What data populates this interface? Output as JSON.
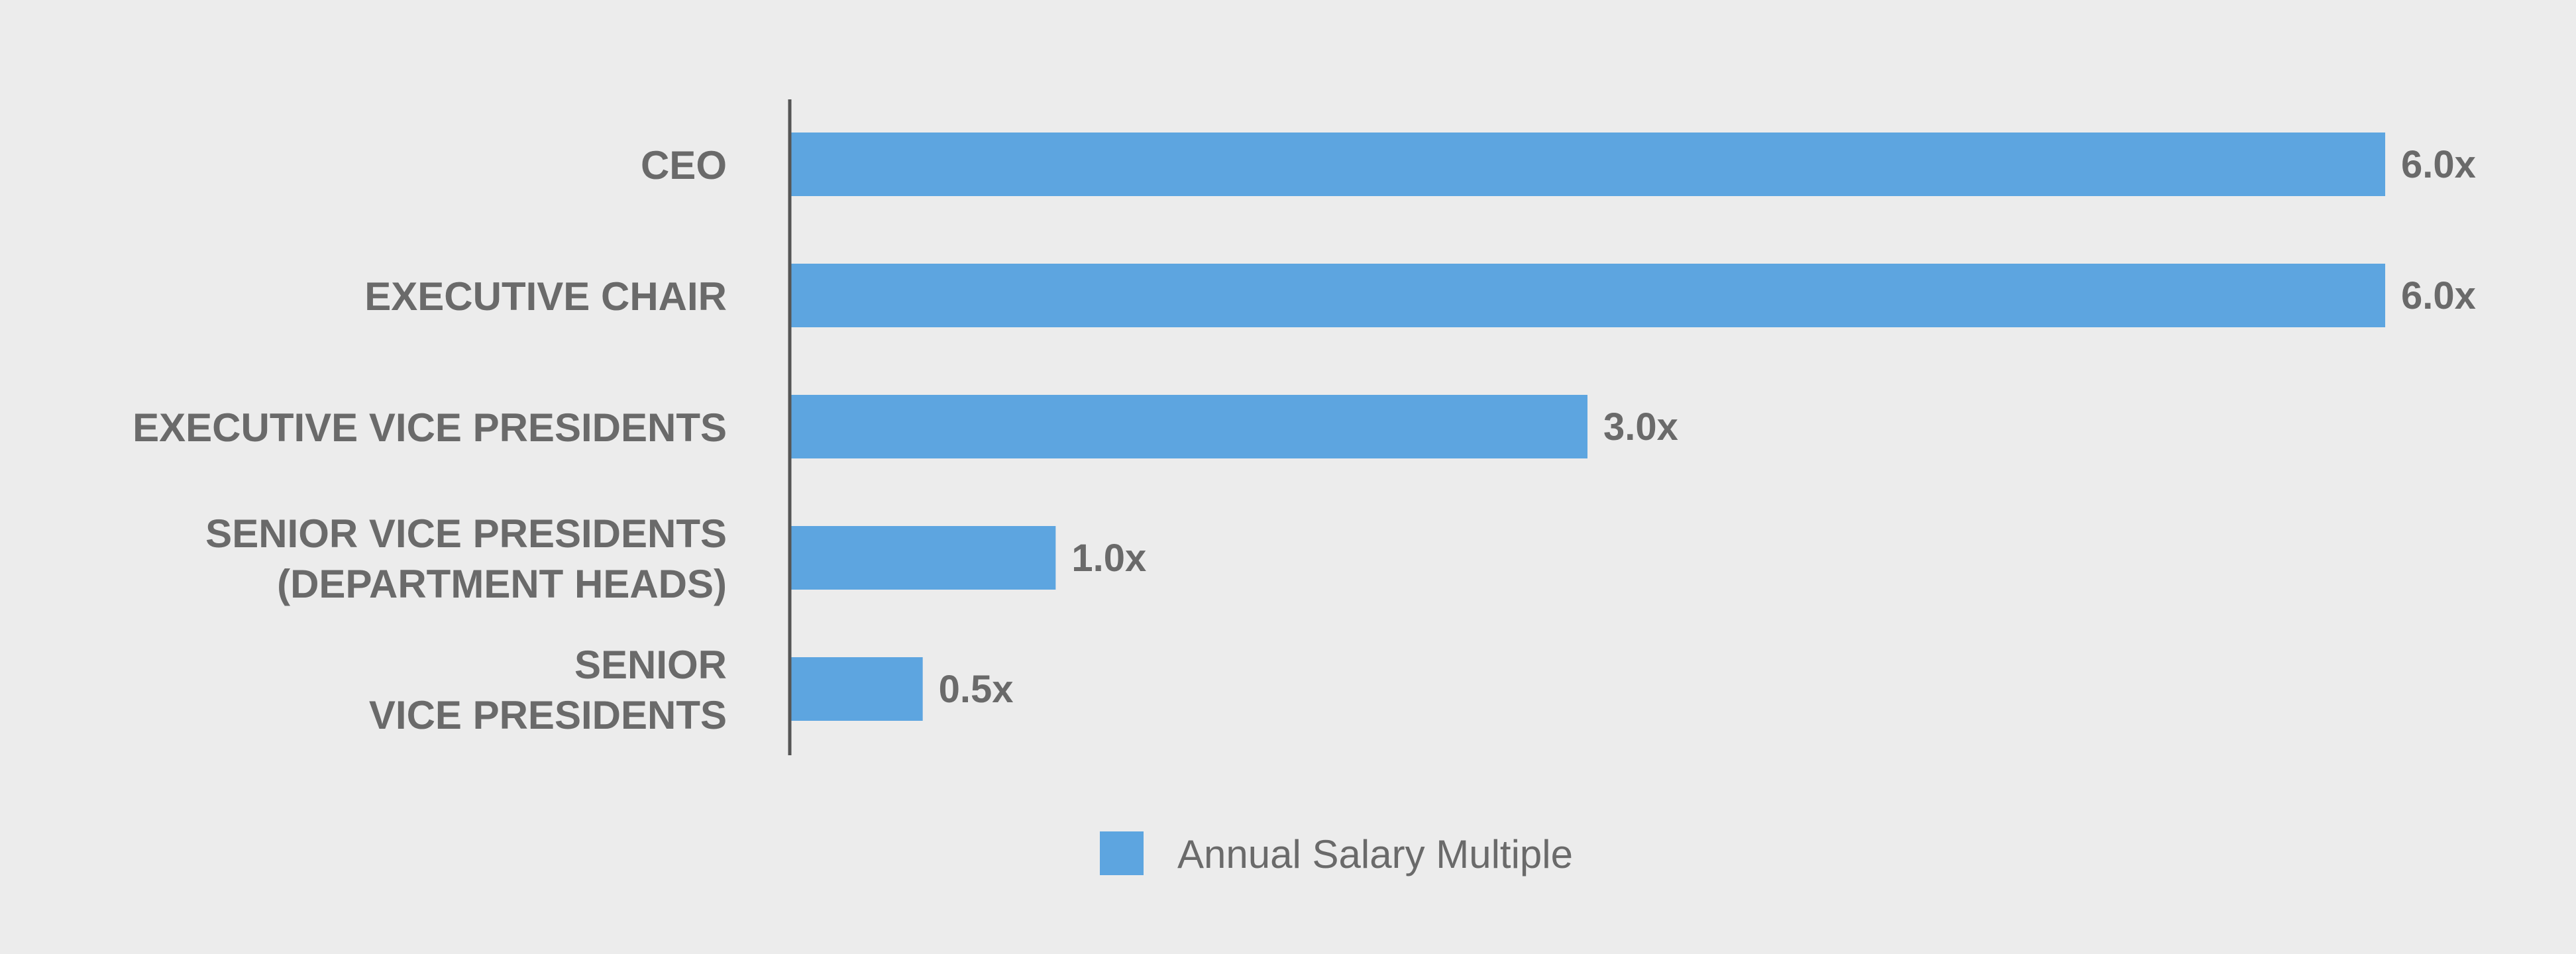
{
  "colors": {
    "bar": "#5da5e0",
    "text": "#6a6a6a",
    "axis": "#555555",
    "background": "#ececec"
  },
  "chart_data": {
    "type": "bar",
    "orientation": "horizontal",
    "categories": [
      [
        "CEO"
      ],
      [
        "EXECUTIVE CHAIR"
      ],
      [
        "EXECUTIVE VICE PRESIDENTS"
      ],
      [
        "SENIOR VICE PRESIDENTS",
        "(DEPARTMENT HEADS)"
      ],
      [
        "SENIOR",
        "VICE PRESIDENTS"
      ]
    ],
    "series": [
      {
        "name": "Annual Salary Multiple",
        "values": [
          6.0,
          6.0,
          3.0,
          1.0,
          0.5
        ],
        "labels": [
          "6.0x",
          "6.0x",
          "3.0x",
          "1.0x",
          "0.5x"
        ]
      }
    ],
    "xlim": [
      0,
      6.0
    ],
    "grid": false,
    "legend_position": "bottom-center",
    "title": "",
    "xlabel": "",
    "ylabel": ""
  }
}
